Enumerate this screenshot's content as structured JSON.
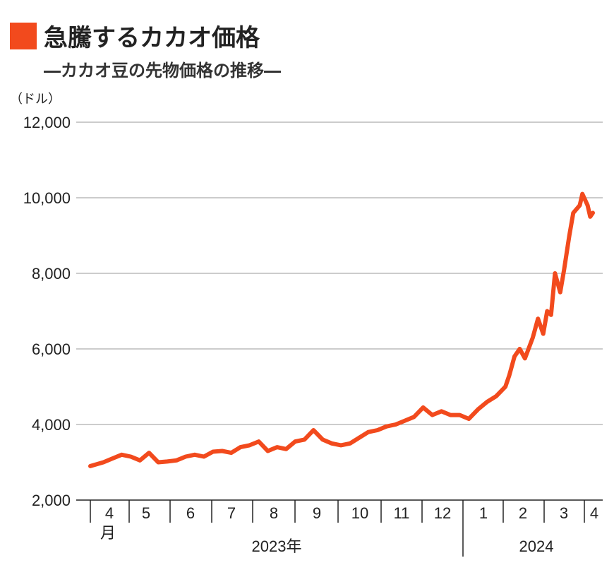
{
  "header": {
    "title": "急騰するカカオ価格",
    "subtitle": "―カカオ豆の先物価格の推移―",
    "unit": "（ドル）"
  },
  "colors": {
    "accent": "#f24a1d",
    "grid": "#9a9a9a",
    "axis": "#222222"
  },
  "chart_data": {
    "type": "line",
    "title": "急騰するカカオ価格",
    "subtitle": "―カカオ豆の先物価格の推移―",
    "ylabel": "（ドル）",
    "ylim": [
      2000,
      12000
    ],
    "yticks": [
      2000,
      4000,
      6000,
      8000,
      10000,
      12000
    ],
    "ytick_labels": [
      "2,000",
      "4,000",
      "6,000",
      "8,000",
      "10,000",
      "12,000"
    ],
    "grid": true,
    "x_months": [
      "4",
      "5",
      "6",
      "7",
      "8",
      "9",
      "10",
      "11",
      "12",
      "1",
      "2",
      "3",
      "4"
    ],
    "x_month_unit": "月",
    "x_years": [
      "2023年",
      "2024"
    ],
    "series": [
      {
        "color": "#f24a1d",
        "x": [
          "2023-03-24",
          "2023-04-03",
          "2023-04-10",
          "2023-04-17",
          "2023-04-24",
          "2023-05-01",
          "2023-05-08",
          "2023-05-15",
          "2023-05-22",
          "2023-05-29",
          "2023-06-05",
          "2023-06-12",
          "2023-06-19",
          "2023-06-26",
          "2023-07-03",
          "2023-07-10",
          "2023-07-17",
          "2023-07-24",
          "2023-07-31",
          "2023-08-07",
          "2023-08-14",
          "2023-08-21",
          "2023-08-28",
          "2023-09-04",
          "2023-09-11",
          "2023-09-18",
          "2023-09-25",
          "2023-10-02",
          "2023-10-09",
          "2023-10-16",
          "2023-10-23",
          "2023-10-30",
          "2023-11-06",
          "2023-11-13",
          "2023-11-20",
          "2023-11-27",
          "2023-12-04",
          "2023-12-11",
          "2023-12-18",
          "2023-12-25",
          "2024-01-01",
          "2024-01-08",
          "2024-01-15",
          "2024-01-22",
          "2024-01-29",
          "2024-02-05",
          "2024-02-08",
          "2024-02-12",
          "2024-02-16",
          "2024-02-20",
          "2024-02-26",
          "2024-03-01",
          "2024-03-05",
          "2024-03-08",
          "2024-03-11",
          "2024-03-14",
          "2024-03-18",
          "2024-03-21",
          "2024-03-25",
          "2024-03-28",
          "2024-04-02",
          "2024-04-04",
          "2024-04-08",
          "2024-04-10",
          "2024-04-12"
        ],
        "y": [
          2900,
          3000,
          3100,
          3200,
          3150,
          3050,
          3250,
          3000,
          3020,
          3050,
          3150,
          3200,
          3150,
          3280,
          3300,
          3250,
          3400,
          3450,
          3550,
          3300,
          3400,
          3350,
          3550,
          3600,
          3850,
          3600,
          3500,
          3450,
          3500,
          3650,
          3800,
          3850,
          3950,
          4000,
          4100,
          4200,
          4450,
          4250,
          4350,
          4250,
          4250,
          4150,
          4400,
          4600,
          4750,
          5000,
          5300,
          5800,
          6000,
          5750,
          6300,
          6800,
          6400,
          7000,
          6900,
          8000,
          7500,
          8100,
          9000,
          9600,
          9800,
          10100,
          9800,
          9500,
          9600
        ]
      }
    ]
  }
}
